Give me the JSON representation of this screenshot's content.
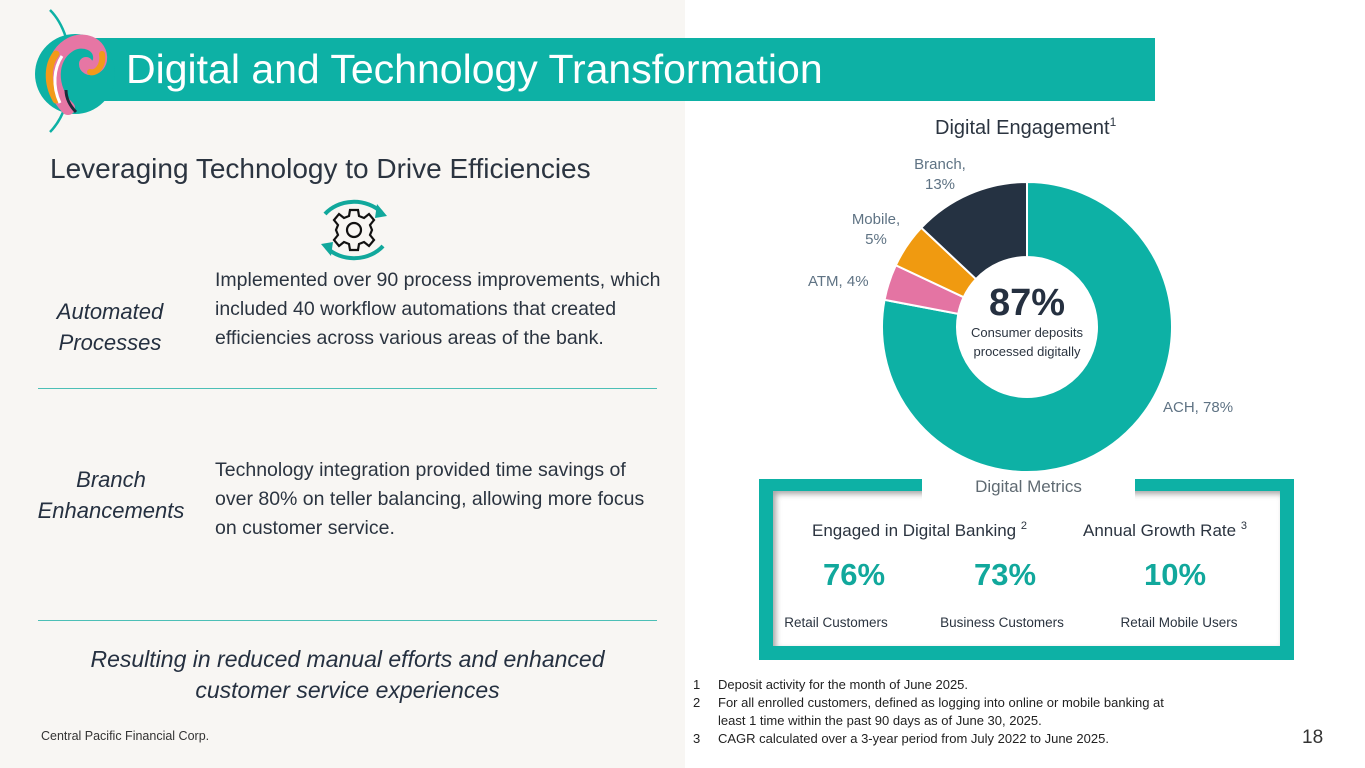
{
  "header": {
    "title": "Digital and Technology Transformation"
  },
  "logo": {
    "icon": "wave-logo-icon",
    "colors": [
      "#0db1a5",
      "#e676a4",
      "#f29a1a",
      "#1d2b3a"
    ]
  },
  "left": {
    "subtitle": "Leveraging Technology to Drive Efficiencies",
    "icon": "gear-cycle-icon",
    "rows": [
      {
        "label_line1": "Automated",
        "label_line2": "Processes",
        "description": "Implemented over 90 process improvements, which included 40 workflow automations that created efficiencies across various areas of the bank."
      },
      {
        "label_line1": "Branch",
        "label_line2": "Enhancements",
        "description": "Technology integration provided time savings of over 80% on teller balancing, allowing more focus on customer service."
      }
    ],
    "result_line1": "Resulting in reduced manual efforts and enhanced",
    "result_line2": "customer service experiences",
    "company": "Central Pacific Financial Corp."
  },
  "chart_data": {
    "type": "pie",
    "subtype": "donut",
    "title": "Digital Engagement",
    "title_footnote": "1",
    "categories": [
      "ACH",
      "ATM",
      "Mobile",
      "Branch"
    ],
    "values": [
      78,
      4,
      5,
      13
    ],
    "unit": "%",
    "colors": [
      "#0db1a5",
      "#e474a3",
      "#f09a10",
      "#253242"
    ],
    "labels": [
      {
        "line1": "ACH, 78%",
        "line2": ""
      },
      {
        "line1": "ATM, 4%",
        "line2": ""
      },
      {
        "line1": "Mobile,",
        "line2": "5%"
      },
      {
        "line1": "Branch,",
        "line2": "13%"
      }
    ],
    "start": "12 o'clock, clockwise",
    "center_value": "87%",
    "center_caption_line1": "Consumer deposits",
    "center_caption_line2": "processed digitally"
  },
  "metrics": {
    "title": "Digital Metrics",
    "groups": [
      {
        "heading": "Engaged in Digital Banking",
        "footnote": "2"
      },
      {
        "heading": "Annual Growth Rate",
        "footnote": "3"
      }
    ],
    "items": [
      {
        "value": "76%",
        "label": "Retail Customers"
      },
      {
        "value": "73%",
        "label": "Business Customers"
      },
      {
        "value": "10%",
        "label": "Retail Mobile Users"
      }
    ],
    "accent": "#0db1a5"
  },
  "footnotes": [
    {
      "num": "1",
      "text": "Deposit activity for the month of June 2025."
    },
    {
      "num": "2",
      "text": "For all enrolled customers, defined as logging into online or mobile banking at least 1 time within the past 90 days as of June 30, 2025."
    },
    {
      "num": "3",
      "text": "CAGR calculated over a 3-year period from July 2022 to June 2025."
    }
  ],
  "page_number": "18"
}
